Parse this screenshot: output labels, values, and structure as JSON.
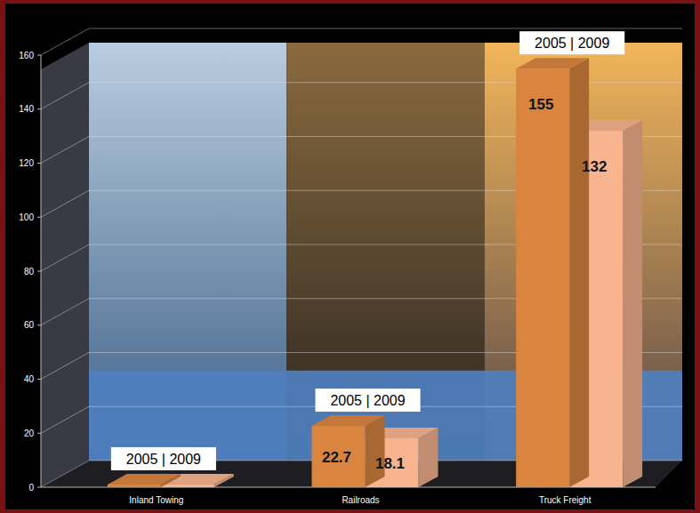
{
  "chart_data": {
    "type": "bar",
    "categories": [
      "Inland Towing",
      "Railroads",
      "Truck Freight"
    ],
    "series": [
      {
        "name": "2005",
        "color": "#d9843f",
        "values": [
          1.0,
          22.7,
          155
        ],
        "value_labels": [
          null,
          "22.7",
          "155"
        ]
      },
      {
        "name": "2009",
        "color": "#f7b48e",
        "values": [
          1.0,
          18.1,
          132
        ],
        "value_labels": [
          null,
          "18.1",
          "132"
        ]
      }
    ],
    "annotations": [
      "2005 | 2009",
      "2005 | 2009",
      "2005 | 2009"
    ],
    "ylim": [
      0,
      160
    ],
    "yticks": [
      0,
      20,
      40,
      60,
      80,
      100,
      120,
      140,
      160
    ],
    "grid": true,
    "data_labels": true
  }
}
